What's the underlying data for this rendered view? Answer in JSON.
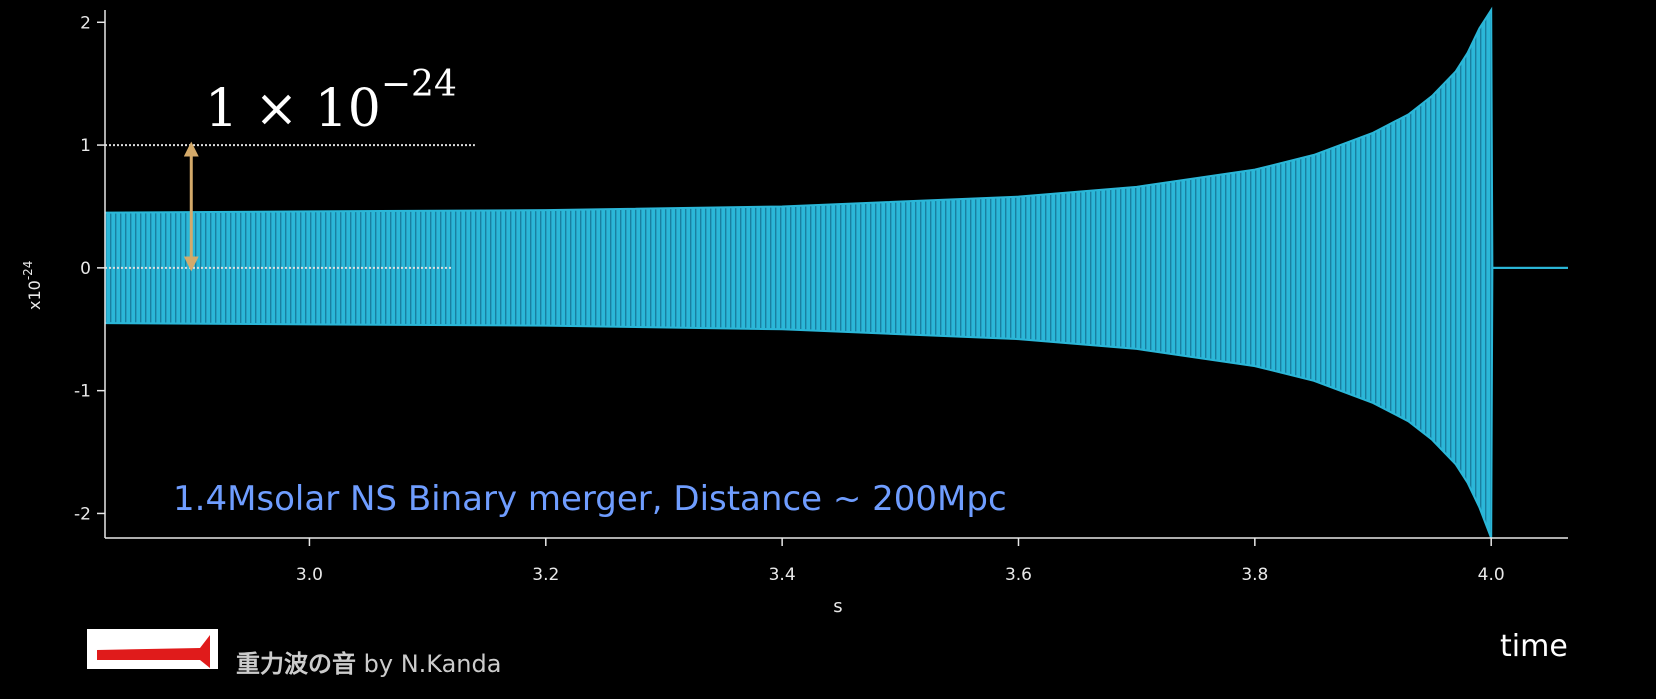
{
  "chart_data": {
    "type": "band",
    "x": [
      2.827,
      3.0,
      3.2,
      3.4,
      3.6,
      3.7,
      3.8,
      3.85,
      3.9,
      3.93,
      3.95,
      3.97,
      3.98,
      3.99,
      4.0,
      4.001,
      4.065
    ],
    "upper": [
      0.45,
      0.46,
      0.47,
      0.5,
      0.58,
      0.66,
      0.8,
      0.92,
      1.1,
      1.25,
      1.4,
      1.6,
      1.75,
      1.95,
      2.1,
      0,
      0
    ],
    "lower": [
      -0.45,
      -0.46,
      -0.47,
      -0.5,
      -0.58,
      -0.66,
      -0.8,
      -0.92,
      -1.1,
      -1.25,
      -1.4,
      -1.6,
      -1.75,
      -1.95,
      -2.2,
      0,
      0
    ],
    "color": "#2bb7d8",
    "xlim": [
      2.827,
      4.065
    ],
    "ylim": [
      -2.2,
      2.1
    ],
    "xticks": [
      {
        "value": 3,
        "label": "3.0"
      },
      {
        "value": 3.2,
        "label": "3.2"
      },
      {
        "value": 3.4,
        "label": "3.4"
      },
      {
        "value": 3.6,
        "label": "3.6"
      },
      {
        "value": 3.8,
        "label": "3.8"
      },
      {
        "value": 4,
        "label": "4.0"
      }
    ],
    "yticks": [
      -2,
      -1,
      0,
      1,
      2
    ],
    "x_label": "s",
    "y_label": {
      "base": "x10",
      "exponent": "-24"
    },
    "scale_annotation": {
      "base": "1 × 10",
      "exponent": "−24"
    },
    "reference_lines": [
      {
        "y": 1,
        "x_end": 3.14
      },
      {
        "y": 0,
        "x_end": 3.12
      }
    ],
    "arrow": {
      "x": 2.9,
      "from": 0,
      "to": 1
    },
    "caption": "1.4Msolar NS Binary merger, Distance ~ 200Mpc"
  },
  "footer": {
    "title": "重力波の音",
    "byline": " by N.Kanda",
    "corner_label": "time"
  }
}
